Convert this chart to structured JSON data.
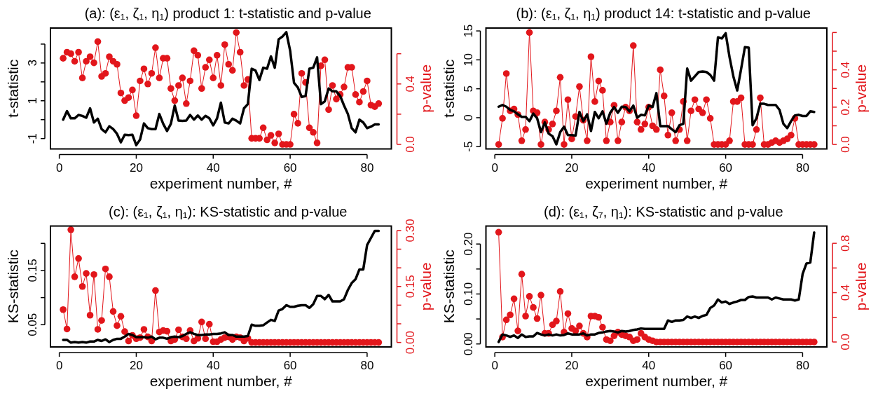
{
  "chart_data": [
    {
      "type": "line",
      "title": "(a): (ε₁, ζ₁, η₁) product 1: t-statistic and p-value",
      "xlabel": "experiment number, #",
      "ylabel": "t-statistic",
      "y2label": "p-value",
      "x": [
        1,
        2,
        3,
        4,
        5,
        6,
        7,
        8,
        9,
        10,
        11,
        12,
        13,
        14,
        15,
        16,
        17,
        18,
        19,
        20,
        21,
        22,
        23,
        24,
        25,
        26,
        27,
        28,
        29,
        30,
        31,
        32,
        33,
        34,
        35,
        36,
        37,
        38,
        39,
        40,
        41,
        42,
        43,
        44,
        45,
        46,
        47,
        48,
        49,
        50,
        51,
        52,
        53,
        54,
        55,
        56,
        57,
        58,
        59,
        60,
        61,
        62,
        63,
        64,
        65,
        66,
        67,
        68,
        69,
        70,
        71,
        72,
        73,
        74,
        75,
        76,
        77,
        78,
        79,
        80,
        81,
        82,
        83
      ],
      "xlim": [
        -2.3,
        86.3
      ],
      "xticks": [
        0,
        20,
        40,
        60,
        80
      ],
      "ylim": [
        -1.55,
        4.85
      ],
      "yticks": [
        -1,
        {
          "value": 0,
          "label": null
        },
        1,
        {
          "value": 2,
          "label": null
        },
        3,
        {
          "value": 4,
          "label": null
        }
      ],
      "y2lim": [
        -0.03,
        0.77
      ],
      "y2ticks": [
        {
          "value": 0,
          "label": "0.0"
        },
        {
          "value": 0.2,
          "label": null
        },
        {
          "value": 0.4,
          "label": "0.4"
        },
        {
          "value": 0.6,
          "label": null
        }
      ],
      "series": [
        {
          "type": "line",
          "color": "#000000",
          "marker": "none",
          "values": [
            0.0,
            0.45,
            0.07,
            0.07,
            0.25,
            0.2,
            0.1,
            0.6,
            -0.15,
            0.05,
            -0.5,
            -0.67,
            -0.35,
            -0.5,
            -0.75,
            -1.2,
            -0.8,
            -0.82,
            -0.8,
            -1.35,
            -1.05,
            -0.2,
            -0.45,
            -0.5,
            -0.5,
            0.3,
            -0.22,
            -0.6,
            -0.22,
            0.75,
            -0.05,
            -0.07,
            -0.05,
            0.25,
            0.0,
            0.22,
            0.0,
            0.2,
            0.07,
            -0.3,
            0.07,
            0.9,
            -0.15,
            -0.2,
            0.05,
            -0.05,
            -0.2,
            0.6,
            0.82,
            2.7,
            2.6,
            2.1,
            2.75,
            2.7,
            3.35,
            2.75,
            4.25,
            4.4,
            4.63,
            3.65,
            1.95,
            1.7,
            1.2,
            1.25,
            2.7,
            2.75,
            3.3,
            0.82,
            0.97,
            1.65,
            1.5,
            1.5,
            1.25,
            0.75,
            0.3,
            -0.45,
            -0.67,
            0.0,
            -0.15,
            -0.45,
            -0.37,
            -0.25,
            -0.25
          ]
        },
        {
          "type": "line",
          "axis": "y2",
          "color": "#e2161b",
          "marker": "circle",
          "values": [
            0.57,
            0.61,
            0.6,
            0.55,
            0.61,
            0.44,
            0.55,
            0.58,
            0.54,
            0.68,
            0.45,
            0.47,
            0.58,
            0.55,
            0.53,
            0.34,
            0.29,
            0.31,
            0.36,
            0.19,
            0.42,
            0.5,
            0.4,
            0.47,
            0.64,
            0.44,
            0.57,
            0.57,
            0.37,
            0.29,
            0.39,
            0.44,
            0.27,
            0.42,
            0.62,
            0.59,
            0.37,
            0.51,
            0.56,
            0.44,
            0.59,
            0.39,
            0.66,
            0.53,
            0.49,
            0.74,
            0.61,
            0.39,
            0.43,
            0.04,
            0.04,
            0.04,
            0.11,
            0.03,
            0.06,
            0.01,
            0.07,
            0.0,
            0.0,
            0.0,
            0.2,
            0.14,
            0.47,
            0.41,
            0.11,
            0.08,
            0.01,
            0.52,
            0.56,
            0.23,
            0.39,
            0.3,
            0.33,
            0.38,
            0.51,
            0.51,
            0.33,
            0.28,
            0.35,
            0.42,
            0.26,
            0.25,
            0.27
          ]
        }
      ]
    },
    {
      "type": "line",
      "title": "(b): (ε₁, ζ₁, η₁) product 14: t-statistic and p-value",
      "xlabel": "experiment number, #",
      "ylabel": "t-statistic",
      "y2label": "p-value",
      "x": [
        1,
        2,
        3,
        4,
        5,
        6,
        7,
        8,
        9,
        10,
        11,
        12,
        13,
        14,
        15,
        16,
        17,
        18,
        19,
        20,
        21,
        22,
        23,
        24,
        25,
        26,
        27,
        28,
        29,
        30,
        31,
        32,
        33,
        34,
        35,
        36,
        37,
        38,
        39,
        40,
        41,
        42,
        43,
        44,
        45,
        46,
        47,
        48,
        49,
        50,
        51,
        52,
        53,
        54,
        55,
        56,
        57,
        58,
        59,
        60,
        61,
        62,
        63,
        64,
        65,
        66,
        67,
        68,
        69,
        70,
        71,
        72,
        73,
        74,
        75,
        76,
        77,
        78,
        79,
        80,
        81,
        82,
        83
      ],
      "xlim": [
        -2.3,
        86.3
      ],
      "xticks": [
        0,
        20,
        40,
        60,
        80
      ],
      "ylim": [
        -5.4,
        15.5
      ],
      "yticks": [
        -5,
        0,
        5,
        10,
        15
      ],
      "y2lim": [
        -0.024,
        0.624
      ],
      "y2ticks": [
        {
          "value": 0,
          "label": "0.0"
        },
        {
          "value": 0.1,
          "label": null
        },
        {
          "value": 0.2,
          "label": "0.2"
        },
        {
          "value": 0.3,
          "label": null
        },
        {
          "value": 0.4,
          "label": "0.4"
        },
        {
          "value": 0.5,
          "label": null
        },
        {
          "value": 0.6,
          "label": null
        }
      ],
      "series": [
        {
          "type": "line",
          "color": "#000000",
          "marker": "none",
          "values": [
            1.9,
            2.2,
            1.9,
            1.35,
            1.1,
            0.6,
            0.15,
            0.15,
            -0.6,
            0.7,
            -0.1,
            -2.5,
            -0.8,
            -2.75,
            -3.2,
            -4.6,
            -2.5,
            -1.55,
            -3.0,
            -3.0,
            -3.1,
            1.0,
            -0.6,
            0.6,
            -2.3,
            1.0,
            -0.1,
            1.1,
            -1.05,
            0.85,
            1.85,
            0.85,
            1.9,
            1.85,
            1.1,
            2.1,
            0.0,
            0.5,
            0.4,
            2.1,
            1.85,
            4.25,
            -1.45,
            -1.45,
            -1.45,
            -2.0,
            -2.5,
            -1.3,
            -1.05,
            8.5,
            6.4,
            7.15,
            7.9,
            8.0,
            7.9,
            7.4,
            6.4,
            13.9,
            13.7,
            14.6,
            10.5,
            7.15,
            4.7,
            8.35,
            12.2,
            12.1,
            -1.3,
            -0.1,
            2.4,
            2.4,
            2.2,
            2.2,
            2.2,
            1.35,
            -1.05,
            -1.8,
            -0.6,
            0.4,
            0.5,
            0.3,
            0.3,
            1.1,
            1.0
          ]
        },
        {
          "type": "line",
          "axis": "y2",
          "color": "#e2161b",
          "marker": "circle",
          "values": [
            0.0,
            0.14,
            0.38,
            0.18,
            0.19,
            0.16,
            0.02,
            0.08,
            0.6,
            0.18,
            0.17,
            0.0,
            0.12,
            0.08,
            0.11,
            0.18,
            0.36,
            0.0,
            0.24,
            0.03,
            0.15,
            0.31,
            0.13,
            0.02,
            0.47,
            0.23,
            0.34,
            0.29,
            0.02,
            0.12,
            0.21,
            0.02,
            0.12,
            0.2,
            0.18,
            0.53,
            0.12,
            0.08,
            0.11,
            0.2,
            0.1,
            0.08,
            0.4,
            0.26,
            0.05,
            0.17,
            0.02,
            0.08,
            0.23,
            0.02,
            0.18,
            0.24,
            0.19,
            0.17,
            0.24,
            0.14,
            0.0,
            0.0,
            0.0,
            0.0,
            0.02,
            0.23,
            0.23,
            0.25,
            0.0,
            0.0,
            0.0,
            0.08,
            0.25,
            0.0,
            0.0,
            0.01,
            0.02,
            0.01,
            0.02,
            0.03,
            0.05,
            0.14,
            0.0,
            0.0,
            0.0,
            0.0,
            0.0
          ]
        }
      ]
    },
    {
      "type": "line",
      "title": "(c): (ε₁, ζ₁, η₁): KS-statistic and p-value",
      "xlabel": "experiment number, #",
      "ylabel": "KS-statistic",
      "y2label": "p-value",
      "x": [
        1,
        2,
        3,
        4,
        5,
        6,
        7,
        8,
        9,
        10,
        11,
        12,
        13,
        14,
        15,
        16,
        17,
        18,
        19,
        20,
        21,
        22,
        23,
        24,
        25,
        26,
        27,
        28,
        29,
        30,
        31,
        32,
        33,
        34,
        35,
        36,
        37,
        38,
        39,
        40,
        41,
        42,
        43,
        44,
        45,
        46,
        47,
        48,
        49,
        50,
        51,
        52,
        53,
        54,
        55,
        56,
        57,
        58,
        59,
        60,
        61,
        62,
        63,
        64,
        65,
        66,
        67,
        68,
        69,
        70,
        71,
        72,
        73,
        74,
        75,
        76,
        77,
        78,
        79,
        80,
        81,
        82,
        83
      ],
      "xlim": [
        -2.3,
        86.3
      ],
      "xticks": [
        0,
        20,
        40,
        60,
        80
      ],
      "ylim": [
        0.009,
        0.232
      ],
      "yticks": [
        0.05,
        {
          "value": 0.1,
          "label": null
        },
        0.15,
        {
          "value": 0.2,
          "label": null
        }
      ],
      "y2lim": [
        -0.012,
        0.312
      ],
      "y2ticks": [
        {
          "value": 0,
          "label": "0.00"
        },
        {
          "value": 0.05,
          "label": null
        },
        {
          "value": 0.1,
          "label": null
        },
        0.15,
        {
          "value": 0.2,
          "label": null
        },
        {
          "value": 0.25,
          "label": null
        },
        {
          "value": 0.3,
          "label": "0.30"
        }
      ],
      "series": [
        {
          "type": "line",
          "color": "#000000",
          "marker": "none",
          "values": [
            0.022,
            0.022,
            0.017,
            0.018,
            0.017,
            0.018,
            0.017,
            0.019,
            0.019,
            0.022,
            0.02,
            0.023,
            0.018,
            0.022,
            0.024,
            0.024,
            0.028,
            0.033,
            0.031,
            0.027,
            0.027,
            0.027,
            0.026,
            0.028,
            0.023,
            0.026,
            0.026,
            0.024,
            0.027,
            0.028,
            0.027,
            0.029,
            0.033,
            0.036,
            0.033,
            0.031,
            0.031,
            0.032,
            0.032,
            0.033,
            0.033,
            0.034,
            0.036,
            0.031,
            0.031,
            0.028,
            0.028,
            0.028,
            0.029,
            0.05,
            0.048,
            0.048,
            0.049,
            0.054,
            0.059,
            0.057,
            0.076,
            0.079,
            0.086,
            0.083,
            0.083,
            0.085,
            0.086,
            0.086,
            0.081,
            0.088,
            0.103,
            0.103,
            0.097,
            0.105,
            0.093,
            0.093,
            0.093,
            0.097,
            0.114,
            0.127,
            0.134,
            0.152,
            0.152,
            0.197,
            0.21,
            0.223,
            0.223
          ]
        },
        {
          "type": "line",
          "axis": "y2",
          "color": "#e2161b",
          "marker": "circle",
          "values": [
            0.088,
            0.036,
            0.302,
            0.176,
            0.225,
            0.15,
            0.185,
            0.073,
            0.182,
            0.035,
            0.059,
            0.197,
            0.176,
            0.083,
            0.045,
            0.07,
            0.029,
            0.004,
            0.019,
            0.01,
            0.013,
            0.035,
            0.015,
            0.004,
            0.139,
            0.028,
            0.032,
            0.03,
            0.004,
            0.008,
            0.034,
            0.015,
            0.01,
            0.032,
            0.004,
            0.011,
            0.055,
            0.01,
            0.049,
            0.002,
            0.002,
            0.008,
            0.013,
            0.015,
            0.008,
            0.015,
            0.013,
            0.004,
            0.011,
            0,
            0,
            0,
            0,
            0,
            0,
            0,
            0,
            0,
            0,
            0,
            0,
            0,
            0,
            0,
            0,
            0,
            0,
            0,
            0,
            0,
            0,
            0,
            0,
            0,
            0,
            0,
            0,
            0,
            0,
            0,
            0,
            0,
            0
          ]
        }
      ]
    },
    {
      "type": "line",
      "title": "(d): (ε₁, ζ₇, η₁): KS-statistic and p-value",
      "xlabel": "experiment number, #",
      "ylabel": "KS-statistic",
      "y2label": "p-value",
      "x": [
        1,
        2,
        3,
        4,
        5,
        6,
        7,
        8,
        9,
        10,
        11,
        12,
        13,
        14,
        15,
        16,
        17,
        18,
        19,
        20,
        21,
        22,
        23,
        24,
        25,
        26,
        27,
        28,
        29,
        30,
        31,
        32,
        33,
        34,
        35,
        36,
        37,
        38,
        39,
        40,
        41,
        42,
        43,
        44,
        45,
        46,
        47,
        48,
        49,
        50,
        51,
        52,
        53,
        54,
        55,
        56,
        57,
        58,
        59,
        60,
        61,
        62,
        63,
        64,
        65,
        66,
        67,
        68,
        69,
        70,
        71,
        72,
        73,
        74,
        75,
        76,
        77,
        78,
        79,
        80,
        81,
        82,
        83
      ],
      "xlim": [
        -2.3,
        86.3
      ],
      "xticks": [
        0,
        20,
        40,
        60,
        80
      ],
      "ylim": [
        -0.006,
        0.236
      ],
      "yticks": [
        {
          "value": 0,
          "label": "0.00"
        },
        {
          "value": 0.05,
          "label": null
        },
        {
          "value": 0.1,
          "label": "0.10"
        },
        {
          "value": 0.15,
          "label": null
        },
        {
          "value": 0.2,
          "label": "0.20"
        }
      ],
      "y2lim": [
        -0.04,
        0.94
      ],
      "y2ticks": [
        {
          "value": 0,
          "label": "0.0"
        },
        {
          "value": 0.2,
          "label": null
        },
        0.4,
        {
          "value": 0.6,
          "label": null
        },
        0.8
      ],
      "series": [
        {
          "type": "line",
          "color": "#000000",
          "marker": "none",
          "values": [
            0.004,
            0.019,
            0.017,
            0.014,
            0.017,
            0.012,
            0.019,
            0.014,
            0.015,
            0.015,
            0.022,
            0.019,
            0.017,
            0.019,
            0.017,
            0.019,
            0.017,
            0.018,
            0.021,
            0.019,
            0.019,
            0.019,
            0.021,
            0.017,
            0.019,
            0.019,
            0.022,
            0.023,
            0.025,
            0.026,
            0.025,
            0.023,
            0.026,
            0.025,
            0.026,
            0.028,
            0.029,
            0.031,
            0.03,
            0.03,
            0.03,
            0.03,
            0.03,
            0.03,
            0.047,
            0.044,
            0.047,
            0.047,
            0.048,
            0.055,
            0.052,
            0.055,
            0.052,
            0.056,
            0.058,
            0.072,
            0.077,
            0.089,
            0.083,
            0.085,
            0.08,
            0.083,
            0.085,
            0.088,
            0.088,
            0.094,
            0.095,
            0.093,
            0.093,
            0.093,
            0.093,
            0.089,
            0.093,
            0.091,
            0.089,
            0.089,
            0.089,
            0.087,
            0.089,
            0.14,
            0.161,
            0.163,
            0.223
          ]
        },
        {
          "type": "line",
          "axis": "y2",
          "color": "#e2161b",
          "marker": "circle",
          "values": [
            0.89,
            0.04,
            0.18,
            0.22,
            0.35,
            0.09,
            0.55,
            0.21,
            0.37,
            0.28,
            0.19,
            0.38,
            0.07,
            0.07,
            0.14,
            0.17,
            0.41,
            0.08,
            0.23,
            0.11,
            0.09,
            0.13,
            0.07,
            0.04,
            0.21,
            0.21,
            0.2,
            0.12,
            0.02,
            0.01,
            0.05,
            0.08,
            0.06,
            0.05,
            0.04,
            0.01,
            0.02,
            0.07,
            0.04,
            0.02,
            0.01,
            0,
            0,
            0,
            0,
            0,
            0,
            0,
            0,
            0,
            0,
            0,
            0,
            0,
            0,
            0,
            0,
            0,
            0,
            0,
            0,
            0,
            0,
            0,
            0,
            0,
            0,
            0,
            0,
            0,
            0,
            0,
            0,
            0,
            0,
            0,
            0,
            0,
            0,
            0,
            0,
            0,
            0
          ]
        }
      ]
    }
  ]
}
